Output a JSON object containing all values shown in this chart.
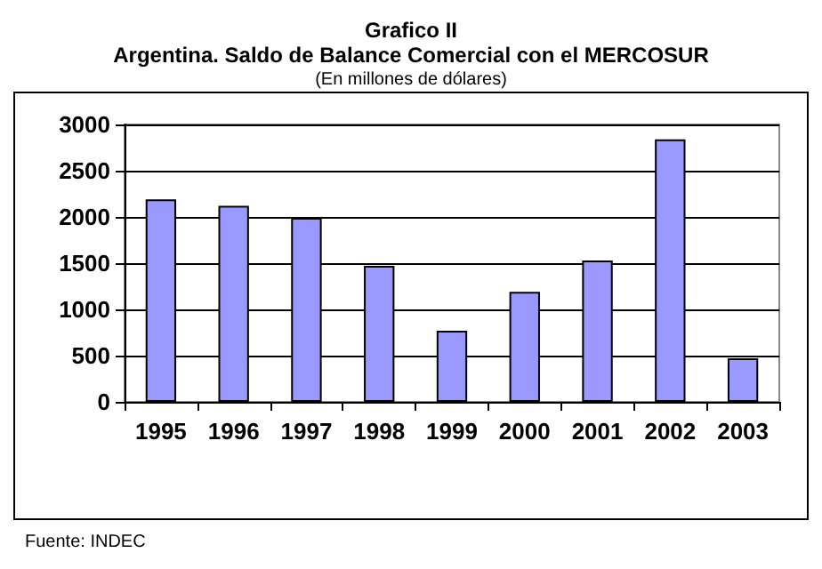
{
  "chart_data": {
    "type": "bar",
    "title": "Grafico II",
    "subtitle": "Argentina. Saldo de Balance Comercial con el MERCOSUR",
    "annotations": [
      "(En millones de dólares)",
      "Fuente: INDEC"
    ],
    "categories": [
      "1995",
      "1996",
      "1997",
      "1998",
      "1999",
      "2000",
      "2001",
      "2002",
      "2003"
    ],
    "values": [
      2190,
      2120,
      1990,
      1470,
      770,
      1190,
      1530,
      2840,
      470
    ],
    "color": "#9999ff",
    "ylim": [
      0,
      3000
    ],
    "yticks": [
      0,
      500,
      1000,
      1500,
      2000,
      2500,
      3000
    ],
    "grid": "y"
  }
}
